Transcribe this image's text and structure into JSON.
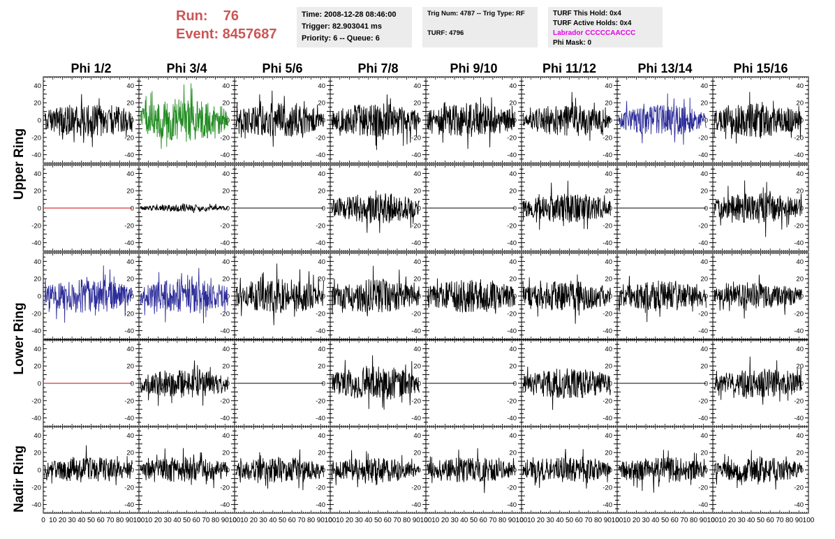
{
  "header": {
    "run_label": "Run:    76",
    "event_label": "Event: 8457687",
    "time": "Time: 2008-12-28 08:46:00",
    "trigger": "Trigger: 82.903041 ms",
    "priority": "Priority: 6 -- Queue: 6",
    "trig_num": "Trig Num: 4787 -- Trig Type: RF",
    "turf": "TURF: 4796",
    "turf_hold": "TURF This Hold: 0x4",
    "turf_active": "TURF Active Holds: 0x4",
    "labrador": "Labrador CCCCCAACCC",
    "phi_mask": "Phi Mask: 0"
  },
  "columns": [
    "Phi 1/2",
    "Phi 3/4",
    "Phi 5/6",
    "Phi 7/8",
    "Phi 9/10",
    "Phi 11/12",
    "Phi 13/14",
    "Phi 15/16"
  ],
  "ring_labels": [
    "Upper Ring",
    "Lower Ring",
    "Nadir Ring"
  ],
  "colors": {
    "default": "#000000",
    "green": "#228b22",
    "blue": "#2b2b99",
    "red": "#cc0000",
    "header_red": "#cc5555",
    "magenta": "#e600e6"
  },
  "chart_data": {
    "type": "line",
    "description_of_panels": "5 rows x 8 columns of waveform panels",
    "xlim": [
      0,
      100
    ],
    "ylim": [
      -50,
      50
    ],
    "x_ticks": [
      0,
      10,
      20,
      30,
      40,
      50,
      60,
      70,
      80,
      90,
      100
    ],
    "x_tick_labels_shown": [
      "0",
      "10",
      "20",
      "30",
      "40",
      "50",
      "60",
      "70",
      "80",
      "90",
      "100"
    ],
    "y_ticks": [
      -40,
      -20,
      0,
      20,
      40
    ],
    "rows": [
      {
        "amplitude": [
          20,
          25,
          20,
          20,
          20,
          18,
          18,
          20
        ],
        "color": [
          "default",
          "green",
          "default",
          "default",
          "default",
          "default",
          "blue",
          "default"
        ]
      },
      {
        "amplitude": [
          0,
          4,
          0,
          18,
          0,
          17,
          0,
          18
        ],
        "color": [
          "red",
          "default",
          "default",
          "default",
          "default",
          "default",
          "default",
          "default"
        ]
      },
      {
        "amplitude": [
          20,
          20,
          20,
          20,
          20,
          18,
          18,
          15
        ],
        "color": [
          "blue",
          "blue",
          "default",
          "default",
          "default",
          "default",
          "default",
          "default"
        ]
      },
      {
        "amplitude": [
          0,
          17,
          0,
          20,
          0,
          18,
          0,
          17
        ],
        "color": [
          "red",
          "default",
          "default",
          "default",
          "default",
          "default",
          "default",
          "default"
        ]
      },
      {
        "amplitude": [
          15,
          15,
          15,
          15,
          15,
          15,
          15,
          15
        ],
        "color": [
          "default",
          "default",
          "default",
          "default",
          "default",
          "default",
          "default",
          "default"
        ]
      }
    ]
  }
}
